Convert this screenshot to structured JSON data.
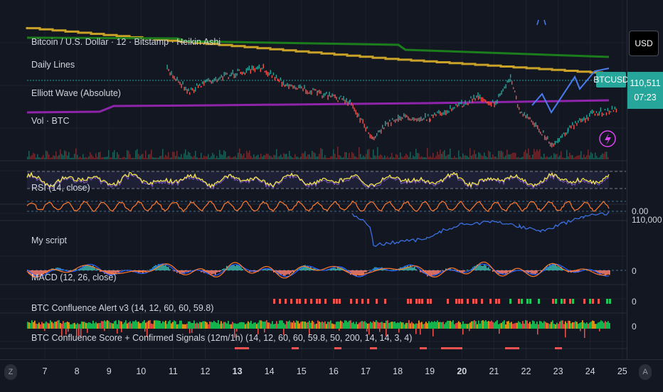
{
  "panes": {
    "main_title": "Bitcoin / U.S. Dollar · 12 · Bitstamp · Heikin Ashi",
    "daily_lines": "Daily Lines",
    "elliott": "Elliott Wave (Absolute)",
    "vol": "Vol · BTC",
    "rsi": "RSI (14, close)",
    "my_script": "My script",
    "macd": "MACD (12, 26, close)",
    "alert": "BTC Confluence Alert v3 (14, 12, 60, 60, 59.8)",
    "score": "BTC Confluence Score + Confirmed Signals (12m/1h) (14, 12, 60, 60, 59.8, 50, 200, 14, 14, 3, 4)"
  },
  "price_scale": {
    "currency": "USD",
    "symbol_tag": "BTCUSD",
    "last_price": "110,511",
    "countdown": "07:23",
    "pane_values": [
      "0.00",
      "110,000",
      "0",
      "0",
      "0"
    ]
  },
  "time_axis": {
    "labels": [
      "7",
      "8",
      "9",
      "10",
      "11",
      "12",
      "13",
      "14",
      "15",
      "16",
      "17",
      "18",
      "19",
      "20",
      "21",
      "22",
      "23",
      "24",
      "25"
    ],
    "bold_labels": [
      "13",
      "20"
    ],
    "left_button": "Z",
    "right_button": "A"
  },
  "colors": {
    "background": "#131722",
    "gold_line": "#c9a227",
    "green_line": "#1b7d1b",
    "purple_line": "#8e24aa",
    "candle_up": "#26a69a",
    "candle_down": "#ef5350",
    "rsi": "#f0e44a",
    "blue": "#2962ff",
    "orange": "#ff7a2e",
    "signal_green": "#22c55e",
    "signal_red": "#ef5350",
    "last_price_tag": "#26a69a"
  },
  "chart_data": [
    {
      "type": "line",
      "pane": "price",
      "series": [
        {
          "name": "BTCUSD",
          "x_days": [
            6.8,
            8,
            9,
            10,
            10.8,
            11.5,
            12,
            13,
            13.8,
            14.5,
            15.5,
            16.5,
            17.2,
            17.6,
            18,
            19,
            20,
            20.5,
            21,
            21.5,
            21.8,
            22.3,
            22.8,
            23.3,
            24,
            24.8
          ],
          "values": [
            null,
            null,
            null,
            null,
            118000,
            116500,
            117200,
            117800,
            118100,
            117000,
            116400,
            115800,
            113300,
            114200,
            114700,
            114700,
            115600,
            116200,
            115600,
            117500,
            115000,
            114200,
            112800,
            113900,
            114900,
            115300
          ]
        }
      ],
      "note_levels": {
        "gold_step_start": 122700,
        "gold_step_end": 116700,
        "green": 118300,
        "purple": 114600
      }
    }
  ]
}
